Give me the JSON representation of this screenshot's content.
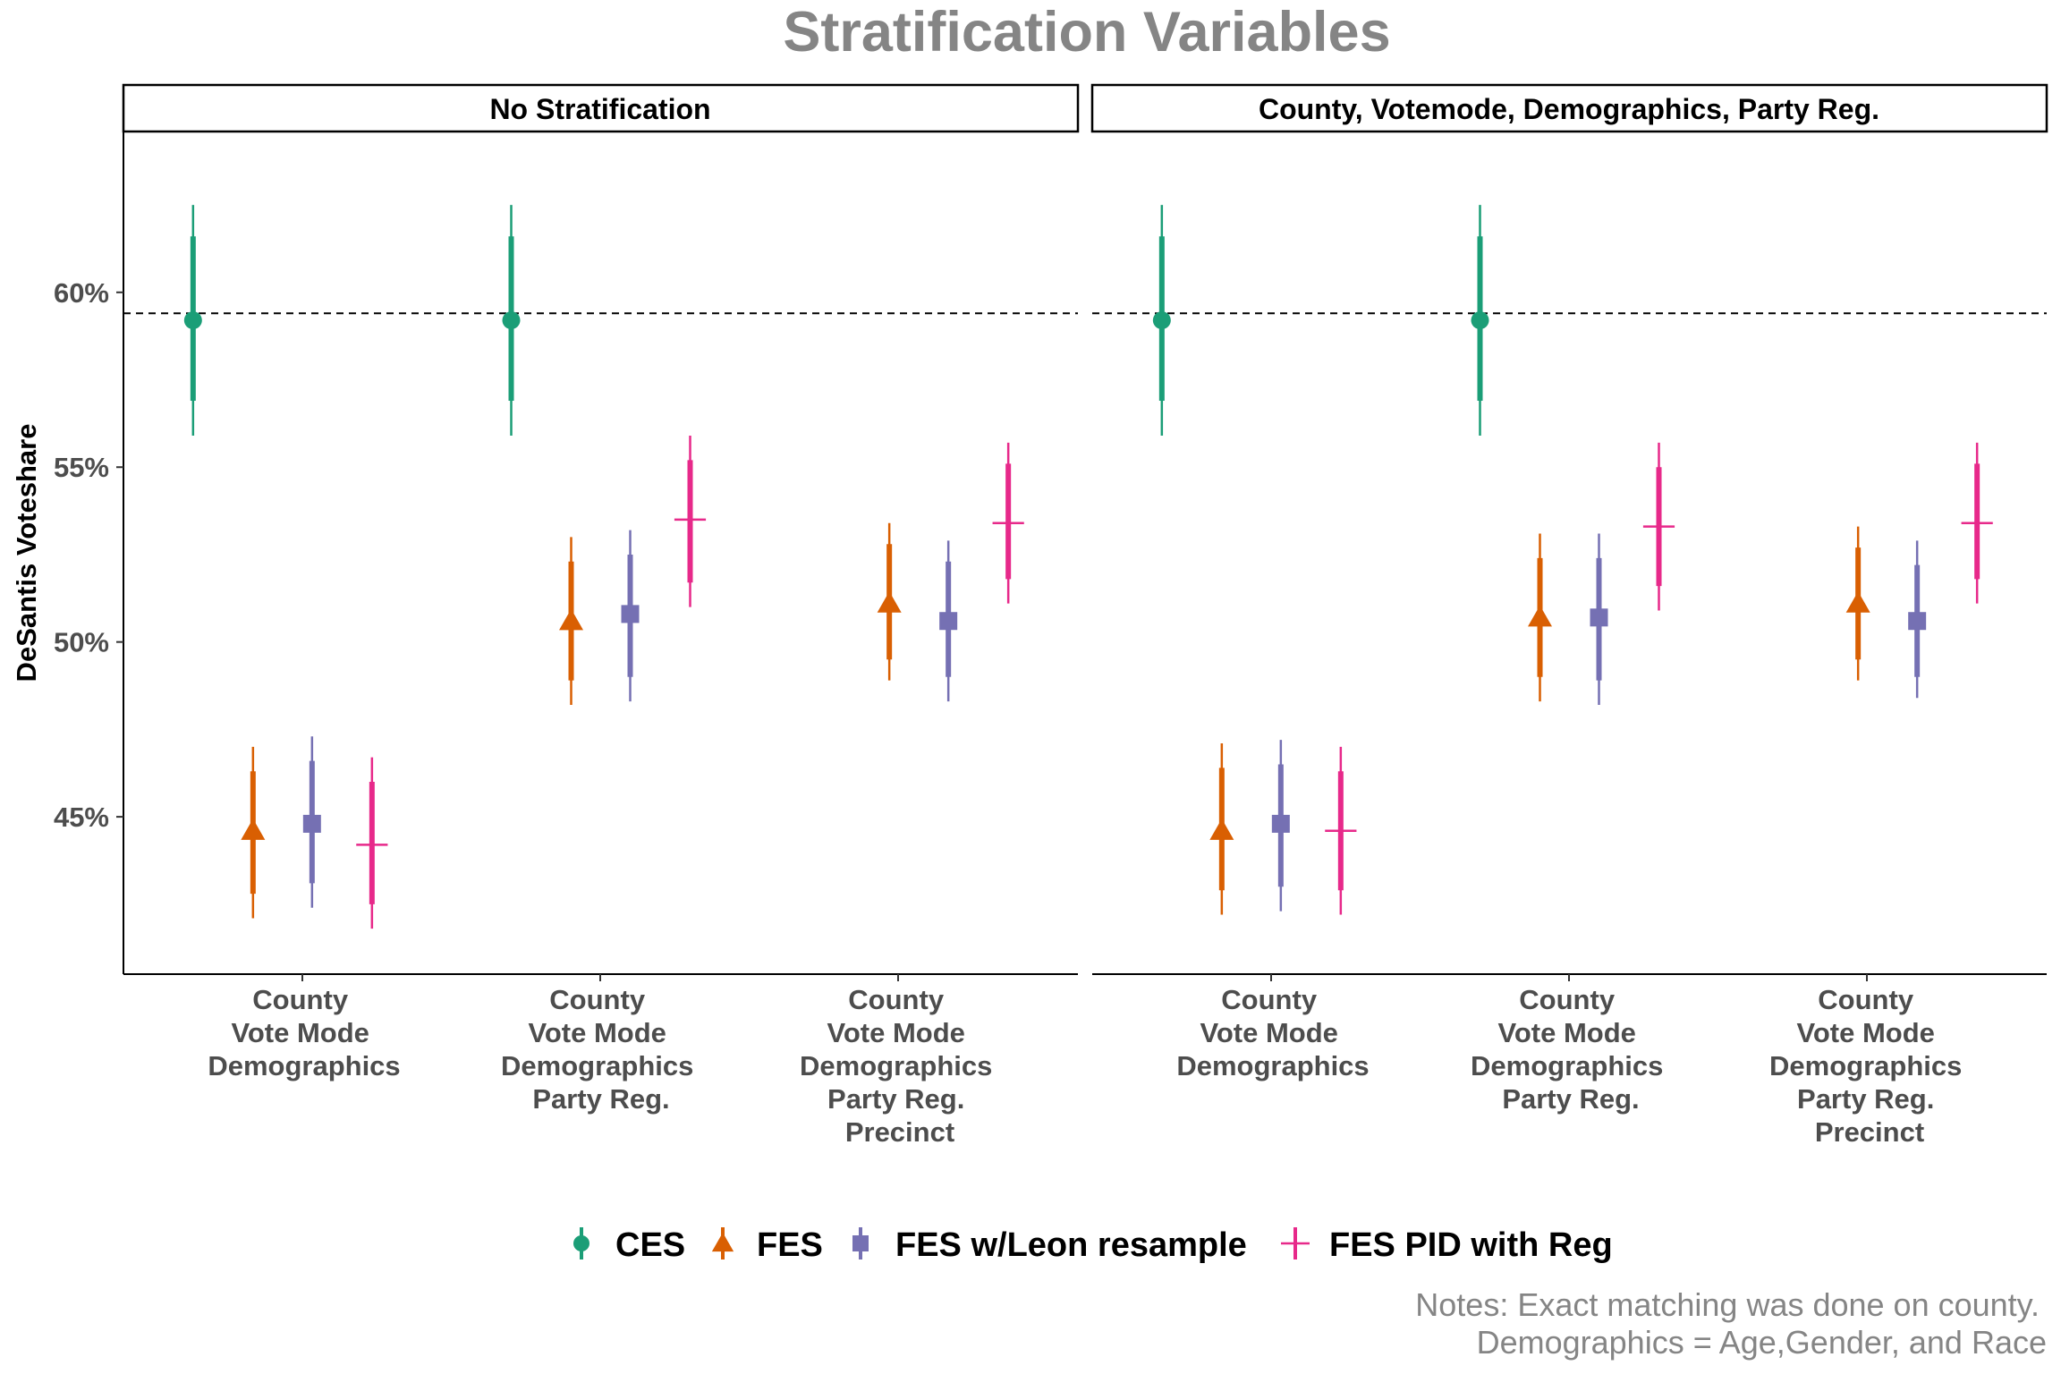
{
  "chart_data": {
    "type": "pointrange",
    "title": "Stratification Variables",
    "ylabel": "DeSantis Voteshare",
    "yticks": [
      "45%",
      "50%",
      "55%",
      "60%"
    ],
    "ylim": [
      40.5,
      64.6
    ],
    "reference_line": 59.4,
    "categories": [
      [
        "County",
        "Vote Mode",
        "Demographics"
      ],
      [
        "County",
        "Vote Mode",
        "Demographics",
        "Party Reg."
      ],
      [
        "County",
        "Vote Mode",
        "Demographics",
        "Party Reg.",
        "Precinct"
      ]
    ],
    "panels": [
      {
        "title": "No Stratification",
        "series": [
          {
            "name": "CES",
            "points": [
              {
                "cat": 0,
                "est": 59.2,
                "lo_inner": 56.9,
                "hi_inner": 61.6,
                "lo_outer": 55.9,
                "hi_outer": 62.5
              },
              {
                "cat": 1,
                "est": 59.2,
                "lo_inner": 56.9,
                "hi_inner": 61.6,
                "lo_outer": 55.9,
                "hi_outer": 62.5
              }
            ]
          },
          {
            "name": "FES",
            "points": [
              {
                "cat": 0,
                "est": 44.6,
                "lo_inner": 42.8,
                "hi_inner": 46.3,
                "lo_outer": 42.1,
                "hi_outer": 47.0
              },
              {
                "cat": 1,
                "est": 50.6,
                "lo_inner": 48.9,
                "hi_inner": 52.3,
                "lo_outer": 48.2,
                "hi_outer": 53.0
              },
              {
                "cat": 2,
                "est": 51.1,
                "lo_inner": 49.5,
                "hi_inner": 52.8,
                "lo_outer": 48.9,
                "hi_outer": 53.4
              }
            ]
          },
          {
            "name": "FES w/Leon resample",
            "points": [
              {
                "cat": 0,
                "est": 44.8,
                "lo_inner": 43.1,
                "hi_inner": 46.6,
                "lo_outer": 42.4,
                "hi_outer": 47.3
              },
              {
                "cat": 1,
                "est": 50.8,
                "lo_inner": 49.0,
                "hi_inner": 52.5,
                "lo_outer": 48.3,
                "hi_outer": 53.2
              },
              {
                "cat": 2,
                "est": 50.6,
                "lo_inner": 49.0,
                "hi_inner": 52.3,
                "lo_outer": 48.3,
                "hi_outer": 52.9
              }
            ]
          },
          {
            "name": "FES PID with Reg",
            "points": [
              {
                "cat": 0,
                "est": 44.2,
                "lo_inner": 42.5,
                "hi_inner": 46.0,
                "lo_outer": 41.8,
                "hi_outer": 46.7
              },
              {
                "cat": 1,
                "est": 53.5,
                "lo_inner": 51.7,
                "hi_inner": 55.2,
                "lo_outer": 51.0,
                "hi_outer": 55.9
              },
              {
                "cat": 2,
                "est": 53.4,
                "lo_inner": 51.8,
                "hi_inner": 55.1,
                "lo_outer": 51.1,
                "hi_outer": 55.7
              }
            ]
          }
        ]
      },
      {
        "title": "County, Votemode, Demographics, Party Reg.",
        "series": [
          {
            "name": "CES",
            "points": [
              {
                "cat": 0,
                "est": 59.2,
                "lo_inner": 56.9,
                "hi_inner": 61.6,
                "lo_outer": 55.9,
                "hi_outer": 62.5
              },
              {
                "cat": 1,
                "est": 59.2,
                "lo_inner": 56.9,
                "hi_inner": 61.6,
                "lo_outer": 55.9,
                "hi_outer": 62.5
              }
            ]
          },
          {
            "name": "FES",
            "points": [
              {
                "cat": 0,
                "est": 44.6,
                "lo_inner": 42.9,
                "hi_inner": 46.4,
                "lo_outer": 42.2,
                "hi_outer": 47.1
              },
              {
                "cat": 1,
                "est": 50.7,
                "lo_inner": 49.0,
                "hi_inner": 52.4,
                "lo_outer": 48.3,
                "hi_outer": 53.1
              },
              {
                "cat": 2,
                "est": 51.1,
                "lo_inner": 49.5,
                "hi_inner": 52.7,
                "lo_outer": 48.9,
                "hi_outer": 53.3
              }
            ]
          },
          {
            "name": "FES w/Leon resample",
            "points": [
              {
                "cat": 0,
                "est": 44.8,
                "lo_inner": 43.0,
                "hi_inner": 46.5,
                "lo_outer": 42.3,
                "hi_outer": 47.2
              },
              {
                "cat": 1,
                "est": 50.7,
                "lo_inner": 48.9,
                "hi_inner": 52.4,
                "lo_outer": 48.2,
                "hi_outer": 53.1
              },
              {
                "cat": 2,
                "est": 50.6,
                "lo_inner": 49.0,
                "hi_inner": 52.2,
                "lo_outer": 48.4,
                "hi_outer": 52.9
              }
            ]
          },
          {
            "name": "FES PID with Reg",
            "points": [
              {
                "cat": 0,
                "est": 44.6,
                "lo_inner": 42.9,
                "hi_inner": 46.3,
                "lo_outer": 42.2,
                "hi_outer": 47.0
              },
              {
                "cat": 1,
                "est": 53.3,
                "lo_inner": 51.6,
                "hi_inner": 55.0,
                "lo_outer": 50.9,
                "hi_outer": 55.7
              },
              {
                "cat": 2,
                "est": 53.4,
                "lo_inner": 51.8,
                "hi_inner": 55.1,
                "lo_outer": 51.1,
                "hi_outer": 55.7
              }
            ]
          }
        ]
      }
    ],
    "legend": {
      "position": "bottom",
      "items": [
        {
          "name": "CES",
          "color": "#1b9e77",
          "shape": "circle"
        },
        {
          "name": "FES",
          "color": "#d95f02",
          "shape": "triangle"
        },
        {
          "name": "FES w/Leon resample",
          "color": "#7570b3",
          "shape": "square"
        },
        {
          "name": "FES PID with Reg",
          "color": "#e7298a",
          "shape": "plus"
        }
      ]
    },
    "notes": [
      "Notes: Exact matching was done on county.",
      "Demographics = Age,Gender, and Race"
    ]
  }
}
